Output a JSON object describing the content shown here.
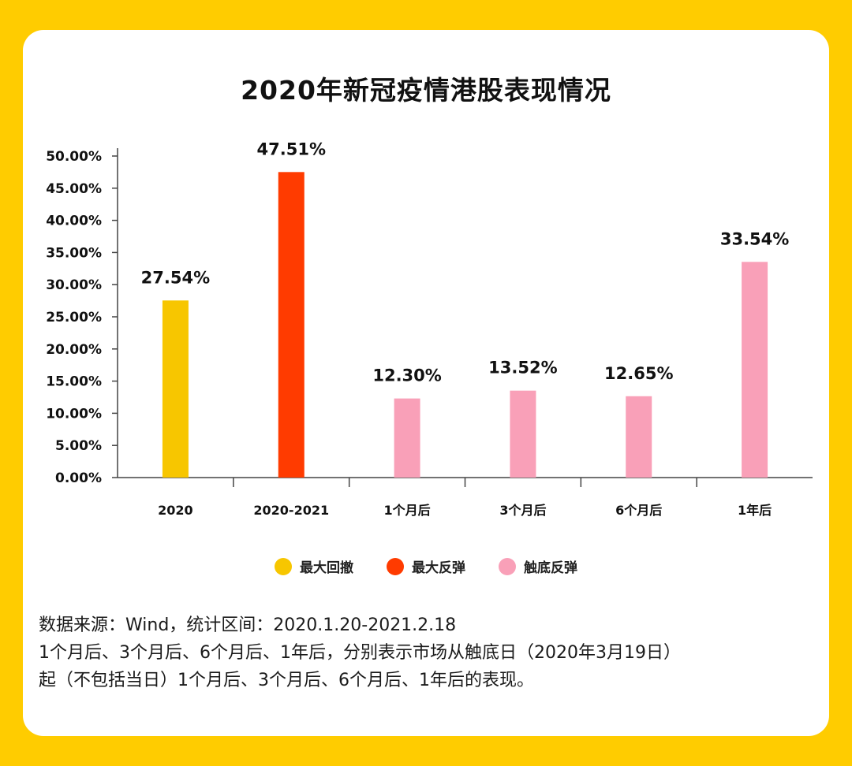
{
  "colors": {
    "background": "#FFCC00",
    "max_drawdown": "#F7C600",
    "max_rebound": "#FF3B00",
    "bottom_rebound": "#F9A0B8"
  },
  "chart_data": {
    "type": "bar",
    "title": "2020年新冠疫情港股表现情况",
    "categories": [
      "2020",
      "2020-2021",
      "1个月后",
      "3个月后",
      "6个月后",
      "1年后"
    ],
    "values": [
      27.54,
      47.51,
      12.3,
      13.52,
      12.65,
      33.54
    ],
    "value_labels": [
      "27.54%",
      "47.51%",
      "12.30%",
      "13.52%",
      "12.65%",
      "33.54%"
    ],
    "series_of_bar": [
      "最大回撤",
      "最大反弹",
      "触底反弹",
      "触底反弹",
      "触底反弹",
      "触底反弹"
    ],
    "ylim": [
      0,
      50
    ],
    "y_ticks": [
      0,
      5,
      10,
      15,
      20,
      25,
      30,
      35,
      40,
      45,
      50
    ],
    "y_tick_labels": [
      "0.00%",
      "5.00%",
      "10.00%",
      "15.00%",
      "20.00%",
      "25.00%",
      "30.00%",
      "35.00%",
      "40.00%",
      "45.00%",
      "50.00%"
    ],
    "legend": [
      {
        "name": "最大回撤",
        "color": "#F7C600"
      },
      {
        "name": "最大反弹",
        "color": "#FF3B00"
      },
      {
        "name": "触底反弹",
        "color": "#F9A0B8"
      }
    ],
    "legend_position": "bottom",
    "grid": false
  },
  "notes": [
    "数据来源：Wind，统计区间：2020.1.20-2021.2.18",
    "1个月后、3个月后、6个月后、1年后，分别表示市场从触底日（2020年3月19日）",
    "起（不包括当日）1个月后、3个月后、6个月后、1年后的表现。"
  ]
}
